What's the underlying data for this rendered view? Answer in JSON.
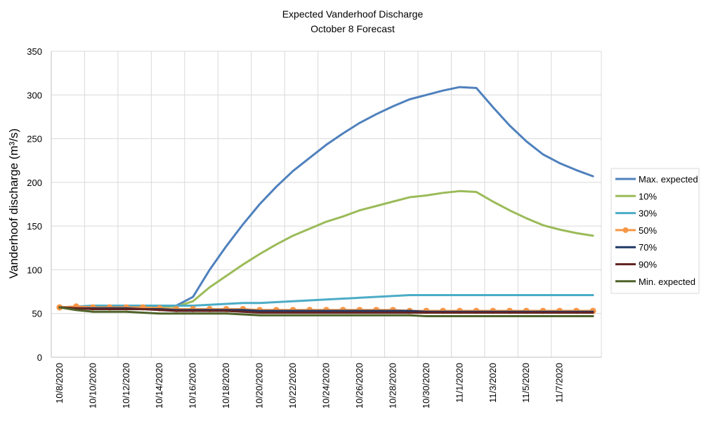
{
  "chart_data": {
    "type": "line",
    "title": "Expected Vanderhoof  Discharge",
    "subtitle": "October 8 Forecast",
    "ylabel": "Vanderhoof  discharge (m³/s)",
    "xlabel": "",
    "ylim": [
      0,
      350
    ],
    "yticks": [
      0,
      50,
      100,
      150,
      200,
      250,
      300,
      350
    ],
    "grid": true,
    "legend_position": "right",
    "x": [
      "10/8/2020",
      "10/9/2020",
      "10/10/2020",
      "10/11/2020",
      "10/12/2020",
      "10/13/2020",
      "10/14/2020",
      "10/15/2020",
      "10/16/2020",
      "10/17/2020",
      "10/18/2020",
      "10/19/2020",
      "10/20/2020",
      "10/21/2020",
      "10/22/2020",
      "10/23/2020",
      "10/24/2020",
      "10/25/2020",
      "10/26/2020",
      "10/27/2020",
      "10/28/2020",
      "10/29/2020",
      "10/30/2020",
      "10/31/2020",
      "11/1/2020",
      "11/2/2020",
      "11/3/2020",
      "11/4/2020",
      "11/5/2020",
      "11/6/2020",
      "11/7/2020",
      "11/8/2020",
      "11/9/2020"
    ],
    "x_tick_labels": [
      "10/8/2020",
      "10/10/2020",
      "10/12/2020",
      "10/14/2020",
      "10/16/2020",
      "10/18/2020",
      "10/20/2020",
      "10/22/2020",
      "10/24/2020",
      "10/26/2020",
      "10/28/2020",
      "10/30/2020",
      "11/1/2020",
      "11/3/2020",
      "11/5/2020",
      "11/7/2020"
    ],
    "series": [
      {
        "name": "Max. expected",
        "color": "#4F81BD",
        "marker": "none",
        "values": [
          57,
          57,
          59,
          59,
          59,
          59,
          59,
          59,
          69,
          100,
          127,
          152,
          175,
          195,
          213,
          228,
          243,
          256,
          268,
          278,
          287,
          295,
          300,
          305,
          309,
          308,
          286,
          265,
          247,
          232,
          222,
          214,
          207
        ]
      },
      {
        "name": "10%",
        "color": "#9BBB59",
        "marker": "none",
        "values": [
          57,
          57,
          58,
          58,
          58,
          58,
          58,
          58,
          64,
          80,
          93,
          106,
          118,
          129,
          139,
          147,
          155,
          161,
          168,
          173,
          178,
          183,
          185,
          188,
          190,
          189,
          178,
          168,
          159,
          151,
          146,
          142,
          139
        ]
      },
      {
        "name": "30%",
        "color": "#4BACC6",
        "marker": "none",
        "values": [
          57,
          58,
          59,
          59,
          59,
          59,
          59,
          59,
          59,
          60,
          61,
          62,
          62,
          63,
          64,
          65,
          66,
          67,
          68,
          69,
          70,
          71,
          71,
          71,
          71,
          71,
          71,
          71,
          71,
          71,
          71,
          71,
          71
        ]
      },
      {
        "name": "50%",
        "color": "#F79646",
        "marker": "circle",
        "values": [
          57,
          58,
          57,
          57,
          57,
          57,
          56,
          55,
          55,
          55,
          55,
          55,
          54,
          54,
          54,
          54,
          54,
          54,
          54,
          54,
          54,
          53,
          53,
          53,
          53,
          53,
          53,
          53,
          53,
          53,
          53,
          53,
          53
        ]
      },
      {
        "name": "70%",
        "color": "#1F3864",
        "marker": "none",
        "values": [
          57,
          56,
          56,
          56,
          56,
          55,
          55,
          54,
          54,
          54,
          54,
          54,
          53,
          53,
          53,
          53,
          53,
          53,
          53,
          53,
          53,
          53,
          52,
          52,
          52,
          52,
          52,
          52,
          52,
          52,
          52,
          52,
          52
        ]
      },
      {
        "name": "90%",
        "color": "#632523",
        "marker": "none",
        "values": [
          57,
          56,
          55,
          55,
          55,
          55,
          54,
          53,
          53,
          53,
          53,
          52,
          51,
          51,
          51,
          51,
          51,
          51,
          51,
          51,
          51,
          51,
          51,
          51,
          51,
          51,
          51,
          51,
          51,
          51,
          51,
          51,
          51
        ]
      },
      {
        "name": "Min. expected",
        "color": "#4F6228",
        "marker": "none",
        "values": [
          57,
          54,
          52,
          52,
          52,
          51,
          50,
          50,
          50,
          50,
          50,
          49,
          48,
          48,
          48,
          48,
          48,
          48,
          48,
          48,
          48,
          48,
          47,
          47,
          47,
          47,
          47,
          47,
          47,
          47,
          47,
          47,
          47
        ]
      }
    ]
  }
}
